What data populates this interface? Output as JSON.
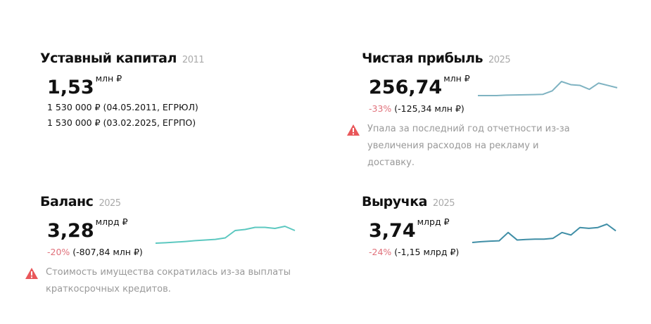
{
  "capital": {
    "title": "Уставный капитал",
    "year": "2011",
    "value": "1,53",
    "unit": "млн ₽",
    "lines": [
      "1 530 000 ₽ (04.05.2011, ЕГРЮЛ)",
      "1 530 000 ₽ (03.02.2025, ЕГРПО)"
    ]
  },
  "profit": {
    "title": "Чистая прибыль",
    "year": "2025",
    "value": "256,74",
    "unit": "млн ₽",
    "change_pct": "-33%",
    "change_abs": "(-125,34 млн ₽)",
    "warning": "Упала за последний год отчетности из-за увеличения расходов на рекламу и доставку.",
    "spark": [
      0,
      0,
      0,
      0.3,
      0.4,
      0.5,
      0.6,
      0.8,
      3,
      9,
      7,
      6.5,
      4,
      8,
      6.5,
      5
    ],
    "color": "#7fb3c2"
  },
  "balance": {
    "title": "Баланс",
    "year": "2025",
    "value": "3,28",
    "unit": "млрд ₽",
    "change_pct": "-20%",
    "change_abs": "(-807,84 млн ₽)",
    "warning": "Стоимость имущества сократилась из-за выплаты краткосрочных кредитов.",
    "spark": [
      0,
      0.2,
      0.5,
      0.8,
      1.2,
      1.5,
      1.8,
      2.5,
      6,
      6.5,
      7.5,
      7.5,
      7,
      8,
      6
    ],
    "color": "#5cc8c0"
  },
  "revenue": {
    "title": "Выручка",
    "year": "2025",
    "value": "3,74",
    "unit": "млрд ₽",
    "change_pct": "-24%",
    "change_abs": "(-1,15 млрд ₽)",
    "spark": [
      0,
      0.5,
      0.8,
      1,
      6,
      1.5,
      1.8,
      2,
      2,
      2.5,
      6,
      4.5,
      9,
      8.5,
      9,
      11,
      7
    ],
    "color": "#3f8ea6"
  },
  "warning_color": "#e9575a"
}
